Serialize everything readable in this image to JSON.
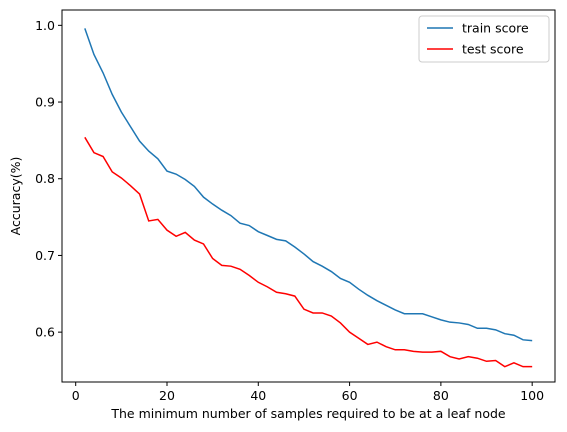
{
  "chart_data": {
    "type": "line",
    "title": "",
    "xlabel": "The minimum number of samples required to be at a leaf node",
    "ylabel": "Accuracy(%)",
    "xlim": [
      -3,
      105
    ],
    "ylim": [
      0.535,
      1.02
    ],
    "xticks": [
      0,
      20,
      40,
      60,
      80,
      100
    ],
    "yticks": [
      0.6,
      0.7,
      0.8,
      0.9,
      1.0
    ],
    "xtick_labels": [
      "0",
      "20",
      "40",
      "60",
      "80",
      "100"
    ],
    "ytick_labels": [
      "0.6",
      "0.7",
      "0.8",
      "0.9",
      "1.0"
    ],
    "grid": false,
    "legend_position": "top-right",
    "x": [
      2,
      4,
      6,
      8,
      10,
      12,
      14,
      16,
      18,
      20,
      22,
      24,
      26,
      28,
      30,
      32,
      34,
      36,
      38,
      40,
      42,
      44,
      46,
      48,
      50,
      52,
      54,
      56,
      58,
      60,
      62,
      64,
      66,
      68,
      70,
      72,
      74,
      76,
      78,
      80,
      82,
      84,
      86,
      88,
      90,
      92,
      94,
      96,
      98,
      100
    ],
    "series": [
      {
        "name": "train score",
        "color": "#1f77b4",
        "values": [
          0.996,
          0.962,
          0.938,
          0.91,
          0.887,
          0.868,
          0.849,
          0.836,
          0.826,
          0.81,
          0.806,
          0.799,
          0.79,
          0.776,
          0.767,
          0.759,
          0.752,
          0.742,
          0.739,
          0.731,
          0.726,
          0.721,
          0.719,
          0.711,
          0.702,
          0.692,
          0.686,
          0.679,
          0.67,
          0.665,
          0.656,
          0.648,
          0.641,
          0.635,
          0.629,
          0.624,
          0.624,
          0.624,
          0.62,
          0.616,
          0.613,
          0.612,
          0.61,
          0.605,
          0.605,
          0.603,
          0.598,
          0.596,
          0.59,
          0.589
        ]
      },
      {
        "name": "test score",
        "color": "#ff0000",
        "values": [
          0.854,
          0.834,
          0.829,
          0.809,
          0.801,
          0.791,
          0.78,
          0.745,
          0.747,
          0.733,
          0.725,
          0.73,
          0.72,
          0.715,
          0.696,
          0.687,
          0.686,
          0.682,
          0.674,
          0.665,
          0.659,
          0.652,
          0.65,
          0.647,
          0.63,
          0.625,
          0.625,
          0.621,
          0.612,
          0.6,
          0.592,
          0.584,
          0.587,
          0.581,
          0.577,
          0.577,
          0.575,
          0.574,
          0.574,
          0.575,
          0.568,
          0.565,
          0.568,
          0.566,
          0.562,
          0.563,
          0.555,
          0.56,
          0.555,
          0.555
        ]
      }
    ]
  }
}
